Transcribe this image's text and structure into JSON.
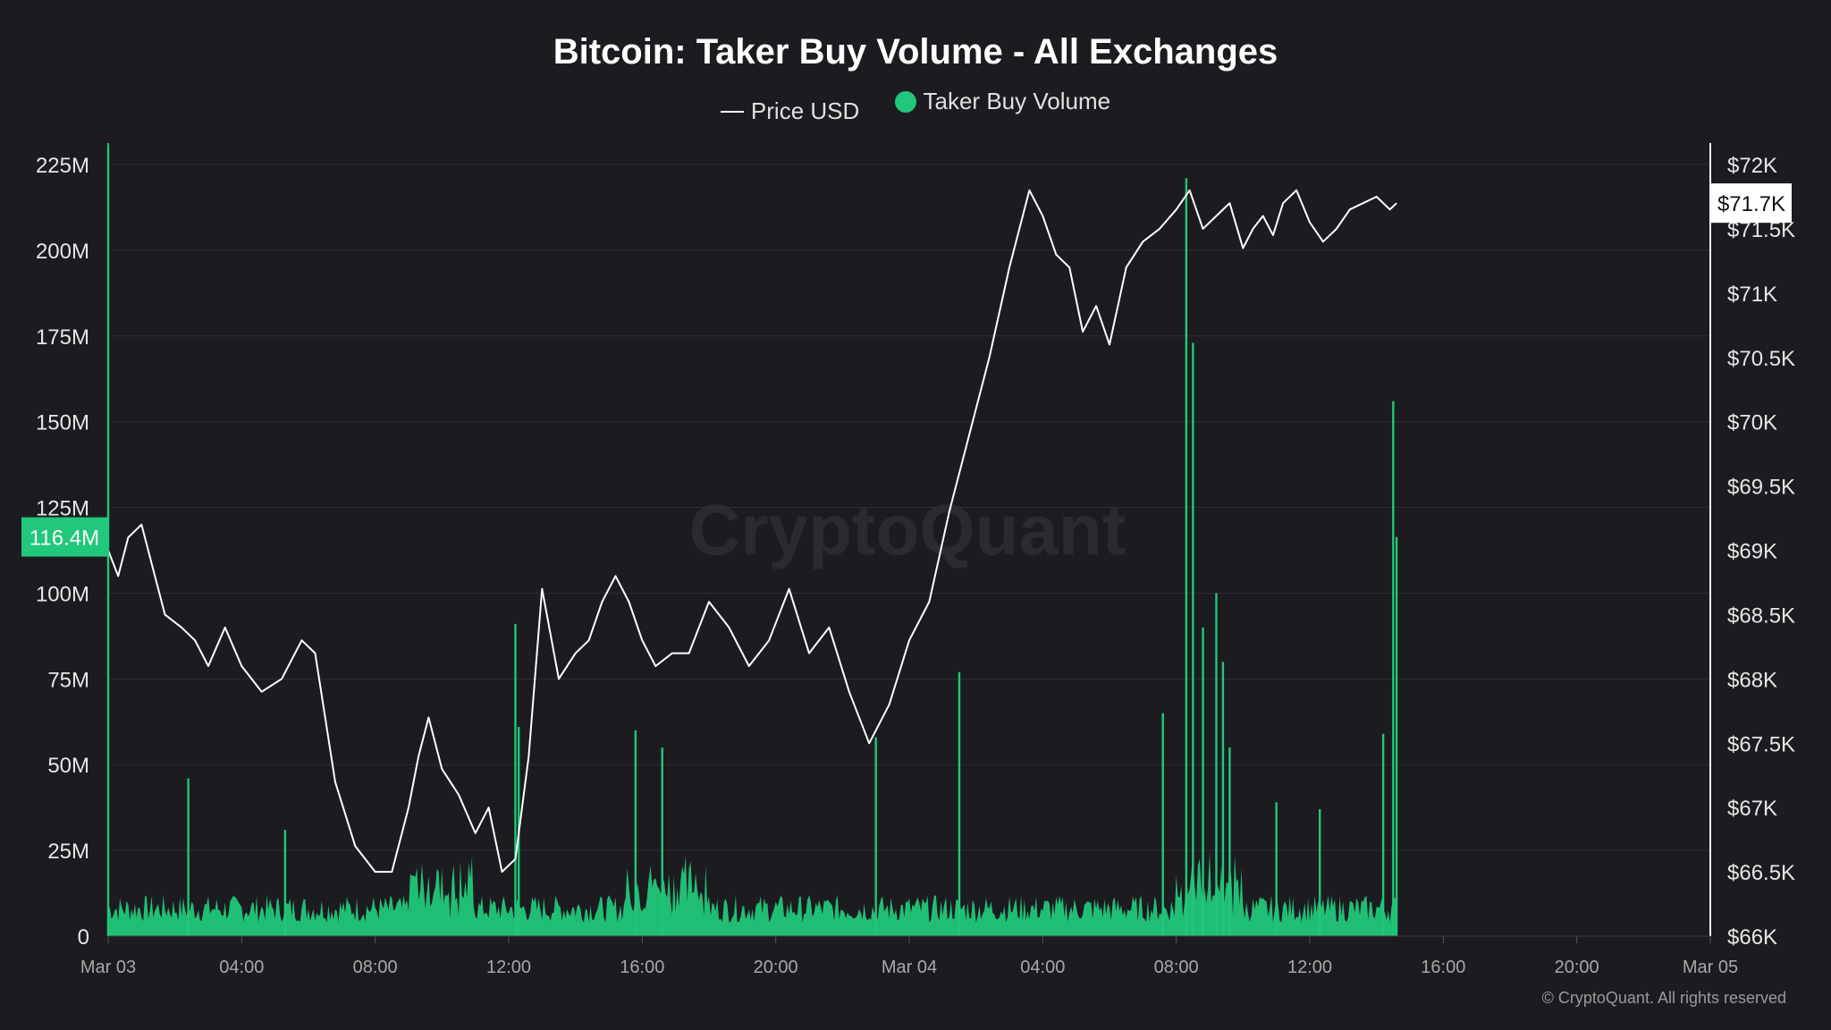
{
  "chart_data": {
    "type": "line",
    "title": "Bitcoin: Taker Buy Volume - All Exchanges",
    "legend": [
      {
        "name": "Price USD",
        "color": "#ffffff",
        "marker": "line"
      },
      {
        "name": "Taker Buy Volume",
        "color": "#21c77a",
        "marker": "dot"
      }
    ],
    "legend_placement": "top-center",
    "watermark": "CryptoQuant",
    "copyright": "© CryptoQuant. All rights reserved",
    "x_ticks": [
      "Mar 03",
      "04:00",
      "08:00",
      "12:00",
      "16:00",
      "20:00",
      "Mar 04",
      "04:00",
      "08:00",
      "12:00",
      "16:00",
      "20:00",
      "Mar 05"
    ],
    "x_range_hours": [
      0,
      48
    ],
    "y_left": {
      "ticks": [
        "0",
        "25M",
        "50M",
        "75M",
        "100M",
        "125M",
        "150M",
        "175M",
        "200M",
        "225M"
      ],
      "tick_values": [
        0,
        25,
        50,
        75,
        100,
        125,
        150,
        175,
        200,
        225
      ],
      "range": [
        0,
        225
      ],
      "unit": "M",
      "current_label": "116.4M",
      "current_value": 116.4
    },
    "y_right": {
      "ticks": [
        "$66K",
        "$66.5K",
        "$67K",
        "$67.5K",
        "$68K",
        "$68.5K",
        "$69K",
        "$69.5K",
        "$70K",
        "$70.5K",
        "$71K",
        "$71.5K",
        "$72K"
      ],
      "tick_values": [
        66000,
        66500,
        67000,
        67500,
        68000,
        68500,
        69000,
        69500,
        70000,
        70500,
        71000,
        71500,
        72000
      ],
      "range": [
        66000,
        72000
      ],
      "current_label": "$71.7K",
      "current_value": 71700
    },
    "grid": true,
    "series": [
      {
        "name": "Price USD",
        "color": "#ffffff",
        "axis": "right",
        "x_hours": [
          0,
          0.3,
          0.6,
          1.0,
          1.3,
          1.7,
          2.2,
          2.6,
          3.0,
          3.5,
          4.0,
          4.6,
          5.2,
          5.8,
          6.2,
          6.8,
          7.4,
          8.0,
          8.5,
          9.0,
          9.3,
          9.6,
          10.0,
          10.5,
          11.0,
          11.4,
          11.8,
          12.2,
          12.6,
          13.0,
          13.5,
          14.0,
          14.4,
          14.8,
          15.2,
          15.6,
          16.0,
          16.4,
          16.9,
          17.4,
          18.0,
          18.6,
          19.2,
          19.8,
          20.4,
          21.0,
          21.6,
          22.2,
          22.8,
          23.4,
          24.0,
          24.6,
          25.2,
          25.8,
          26.4,
          27.0,
          27.6,
          28.0,
          28.4,
          28.8,
          29.2,
          29.6,
          30.0,
          30.5,
          31.0,
          31.5,
          32.0,
          32.4,
          32.8,
          33.2,
          33.6,
          34.0,
          34.3,
          34.6,
          34.9,
          35.2,
          35.6,
          36.0,
          36.4,
          36.8,
          37.2,
          37.6,
          38.0,
          38.4,
          38.6
        ],
        "values": [
          69000,
          68800,
          69100,
          69200,
          68900,
          68500,
          68400,
          68300,
          68100,
          68400,
          68100,
          67900,
          68000,
          68300,
          68200,
          67200,
          66700,
          66500,
          66500,
          67000,
          67400,
          67700,
          67300,
          67100,
          66800,
          67000,
          66500,
          66600,
          67400,
          68700,
          68000,
          68200,
          68300,
          68600,
          68800,
          68600,
          68300,
          68100,
          68200,
          68200,
          68600,
          68400,
          68100,
          68300,
          68700,
          68200,
          68400,
          67900,
          67500,
          67800,
          68300,
          68600,
          69300,
          69900,
          70500,
          71200,
          71800,
          71600,
          71300,
          71200,
          70700,
          70900,
          70600,
          71200,
          71400,
          71500,
          71650,
          71800,
          71500,
          71600,
          71700,
          71350,
          71500,
          71600,
          71450,
          71700,
          71800,
          71550,
          71400,
          71500,
          71650,
          71700,
          71750,
          71650,
          71700
        ]
      },
      {
        "name": "Taker Buy Volume",
        "color": "#21c77a",
        "axis": "left",
        "unit": "M",
        "spikes": [
          {
            "x_hours": 0.0,
            "value": 230
          },
          {
            "x_hours": 2.4,
            "value": 46
          },
          {
            "x_hours": 5.3,
            "value": 31
          },
          {
            "x_hours": 12.2,
            "value": 91
          },
          {
            "x_hours": 12.3,
            "value": 61
          },
          {
            "x_hours": 15.8,
            "value": 60
          },
          {
            "x_hours": 16.6,
            "value": 55
          },
          {
            "x_hours": 23.0,
            "value": 58
          },
          {
            "x_hours": 25.5,
            "value": 77
          },
          {
            "x_hours": 31.6,
            "value": 65
          },
          {
            "x_hours": 32.3,
            "value": 221
          },
          {
            "x_hours": 32.5,
            "value": 173
          },
          {
            "x_hours": 32.8,
            "value": 90
          },
          {
            "x_hours": 33.2,
            "value": 100
          },
          {
            "x_hours": 33.4,
            "value": 80
          },
          {
            "x_hours": 33.6,
            "value": 55
          },
          {
            "x_hours": 35.0,
            "value": 39
          },
          {
            "x_hours": 36.3,
            "value": 37
          },
          {
            "x_hours": 38.2,
            "value": 59
          },
          {
            "x_hours": 38.5,
            "value": 156
          },
          {
            "x_hours": 38.6,
            "value": 116.4
          }
        ]
      }
    ]
  }
}
